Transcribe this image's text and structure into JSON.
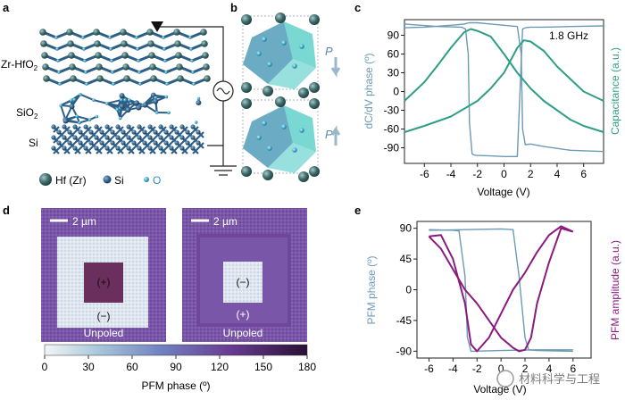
{
  "panel_labels": {
    "a": "a",
    "b": "b",
    "c": "c",
    "d": "d",
    "e": "e"
  },
  "panel_a": {
    "layer_labels": {
      "top": "Zr-HfO2",
      "top_main": "Zr-HfO",
      "top_sub": "2",
      "middle_main": "SiO",
      "middle_sub": "2",
      "bottom": "Si"
    },
    "legend": [
      {
        "symbol": "hf-zr-atom",
        "label": "Hf (Zr)"
      },
      {
        "symbol": "si-atom",
        "label": "Si"
      },
      {
        "symbol": "o-atom",
        "label": "O"
      }
    ],
    "colors": {
      "hf": "#3d6b6b",
      "si": "#2f5f86",
      "o": "#3fa8c8",
      "bond": "#2e5f86"
    }
  },
  "panel_b": {
    "polarization_label": "P",
    "states": [
      {
        "arrow": "down"
      },
      {
        "arrow": "up"
      }
    ],
    "colors": {
      "octahedron_a": "#3a8fb0",
      "octahedron_b": "#42c7c1",
      "arrow": "#9ab8c8"
    }
  },
  "panel_c": {
    "frequency_label": "1.8 GHz",
    "colors": {
      "phase": "#6b9ab5",
      "capacitance": "#2e9e86"
    }
  },
  "panel_d": {
    "scale_bar_left": "2 µm",
    "scale_bar_right": "2 µm",
    "left_image": {
      "inner": "(+)",
      "ring": "(−)",
      "outer": "Unpoled"
    },
    "right_image": {
      "inner": "(−)",
      "ring": "(+)",
      "outer": "Unpoled"
    },
    "colorbar": {
      "ticks": [
        "0",
        "30",
        "60",
        "90",
        "120",
        "150",
        "180"
      ],
      "label": "PFM phase (º)"
    },
    "colors": {
      "purple": "#6b3d8f",
      "light": "#dde3ee",
      "dark": "#4a1f55"
    }
  },
  "panel_e": {
    "colors": {
      "phase": "#6b9ab5",
      "amplitude": "#8b1a7f"
    }
  },
  "watermark": "材料科学与工程",
  "chart_data": [
    {
      "type": "line",
      "panel": "c",
      "xlabel": "Voltage (V)",
      "ylabel_left": "dC/dV phase (º)",
      "ylabel_right": "Capacitance (a.u.)",
      "xlim": [
        -7.5,
        7.5
      ],
      "ylim": [
        -115,
        115
      ],
      "xticks": [
        -6,
        -4,
        -2,
        0,
        2,
        4,
        6
      ],
      "yticks": [
        90,
        60,
        30,
        0,
        -30,
        -60,
        -90
      ],
      "annotation": "1.8 GHz",
      "series": [
        {
          "role": "dC/dV phase (º)",
          "x": [
            -7.5,
            -5,
            -3.2,
            -2.9,
            -2.7,
            -2.6,
            -2.4,
            -2.2,
            -1,
            0,
            1,
            1.4,
            1.6,
            2,
            3,
            5,
            7.5
          ],
          "y": [
            108,
            104,
            103,
            100,
            60,
            -50,
            -100,
            -102,
            -103,
            -104,
            -104,
            100,
            102,
            103,
            103,
            104,
            105
          ]
        },
        {
          "role": "dC/dV phase (º) reverse",
          "x": [
            -7.5,
            -6,
            -4,
            -3,
            -2.6,
            -2,
            -1,
            0,
            1,
            1.3,
            1.4,
            1.6,
            2,
            3,
            5,
            7.5
          ],
          "y": [
            102,
            103,
            106,
            108,
            110,
            110,
            108,
            106,
            104,
            60,
            -60,
            -85,
            -84,
            -88,
            -94,
            -96
          ]
        },
        {
          "role": "Capacitance (a.u.)",
          "x": [
            -7.5,
            -6,
            -5,
            -4,
            -3,
            -2.5,
            -2,
            -1,
            0,
            1,
            2,
            3,
            4,
            5,
            6,
            7.5
          ],
          "y": [
            -15,
            15,
            42,
            70,
            95,
            100,
            97,
            88,
            60,
            30,
            5,
            -15,
            -30,
            -45,
            -55,
            -65
          ]
        },
        {
          "role": "Capacitance (a.u.) reverse",
          "x": [
            -7.5,
            -6,
            -4,
            -2,
            -1,
            0,
            1,
            1.5,
            2,
            3,
            4,
            5,
            6,
            7.5
          ],
          "y": [
            -65,
            -55,
            -40,
            -15,
            5,
            30,
            70,
            82,
            80,
            65,
            40,
            20,
            0,
            -15
          ]
        }
      ]
    },
    {
      "type": "line",
      "panel": "e",
      "xlabel": "Voltage (V)",
      "ylabel_left": "PFM phase (º)",
      "ylabel_right": "PFM amplitude (a.u.)",
      "xlim": [
        -7,
        7.5
      ],
      "ylim": [
        -100,
        100
      ],
      "xticks": [
        -6,
        -4,
        -2,
        0,
        2,
        4,
        6
      ],
      "yticks": [
        90,
        45,
        0,
        -45,
        -90
      ],
      "series": [
        {
          "role": "PFM phase (º)",
          "x": [
            -6,
            -4,
            -3.5,
            -3,
            -2.8,
            -2.5,
            0,
            3,
            6
          ],
          "y": [
            88,
            87,
            86,
            20,
            -70,
            -90,
            -89,
            -88,
            -88
          ]
        },
        {
          "role": "PFM phase (º) reverse",
          "x": [
            -6,
            -3,
            0,
            1,
            1.5,
            2,
            2.3,
            3,
            6
          ],
          "y": [
            87,
            88,
            89,
            88,
            20,
            -70,
            -88,
            -89,
            -90
          ]
        },
        {
          "role": "PFM amplitude (a.u.)",
          "x": [
            -6,
            -5,
            -4,
            -3,
            -2.5,
            -2,
            -1,
            0,
            1,
            2,
            3,
            4,
            5,
            6
          ],
          "y": [
            78,
            80,
            45,
            -20,
            -80,
            -90,
            -70,
            -35,
            0,
            25,
            55,
            80,
            93,
            85
          ]
        },
        {
          "role": "PFM amplitude (a.u.) reverse",
          "x": [
            -6,
            -5,
            -4,
            -3,
            -2,
            -1,
            0,
            1,
            1.5,
            2,
            2.5,
            3,
            4,
            5,
            6
          ],
          "y": [
            78,
            60,
            30,
            0,
            -20,
            -45,
            -70,
            -85,
            -90,
            -88,
            -70,
            -20,
            40,
            90,
            85
          ]
        }
      ]
    }
  ]
}
